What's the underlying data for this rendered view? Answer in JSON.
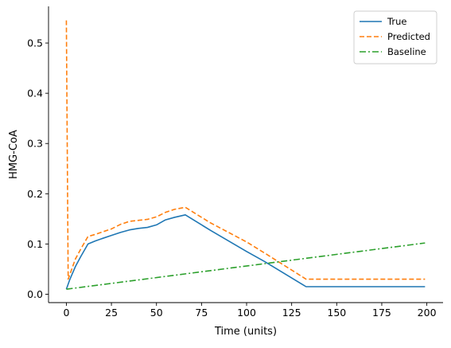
{
  "chart_data": {
    "type": "line",
    "title": "",
    "xlabel": "Time (units)",
    "ylabel": "HMG-CoA",
    "xlim": [
      -9.9,
      209.0
    ],
    "ylim": [
      -0.0167,
      0.573
    ],
    "xticks": [
      0,
      25,
      50,
      75,
      100,
      125,
      150,
      175,
      200
    ],
    "xtick_labels": [
      "0",
      "25",
      "50",
      "75",
      "100",
      "125",
      "150",
      "175",
      "200"
    ],
    "yticks": [
      0.0,
      0.1,
      0.2,
      0.3,
      0.4,
      0.5
    ],
    "ytick_labels": [
      "0.0",
      "0.1",
      "0.2",
      "0.3",
      "0.4",
      "0.5"
    ],
    "grid": false,
    "legend_position": "top-right",
    "series": [
      {
        "name": "True",
        "color": "#1f77b4",
        "linestyle": "solid",
        "x": [
          0,
          2,
          5,
          8,
          12,
          16,
          20,
          25,
          30,
          35,
          40,
          45,
          50,
          55,
          60,
          66,
          80,
          100,
          110,
          133,
          150,
          175,
          199
        ],
        "y": [
          0.01,
          0.03,
          0.055,
          0.075,
          0.1,
          0.106,
          0.111,
          0.117,
          0.123,
          0.128,
          0.131,
          0.133,
          0.138,
          0.148,
          0.153,
          0.158,
          0.127,
          0.085,
          0.065,
          0.015,
          0.015,
          0.015,
          0.015
        ]
      },
      {
        "name": "Predicted",
        "color": "#ff7f0e",
        "linestyle": "dashed",
        "x": [
          0,
          1,
          2,
          5,
          8,
          12,
          16,
          20,
          25,
          30,
          35,
          40,
          45,
          50,
          55,
          60,
          66,
          80,
          100,
          110,
          133,
          150,
          175,
          199
        ],
        "y": [
          0.545,
          0.03,
          0.04,
          0.07,
          0.09,
          0.115,
          0.119,
          0.124,
          0.13,
          0.139,
          0.145,
          0.147,
          0.149,
          0.154,
          0.163,
          0.169,
          0.173,
          0.142,
          0.104,
          0.082,
          0.03,
          0.03,
          0.03,
          0.03
        ]
      },
      {
        "name": "Baseline",
        "color": "#2ca02c",
        "linestyle": "dashdot",
        "x": [
          0,
          199
        ],
        "y": [
          0.01,
          0.102
        ]
      }
    ]
  }
}
